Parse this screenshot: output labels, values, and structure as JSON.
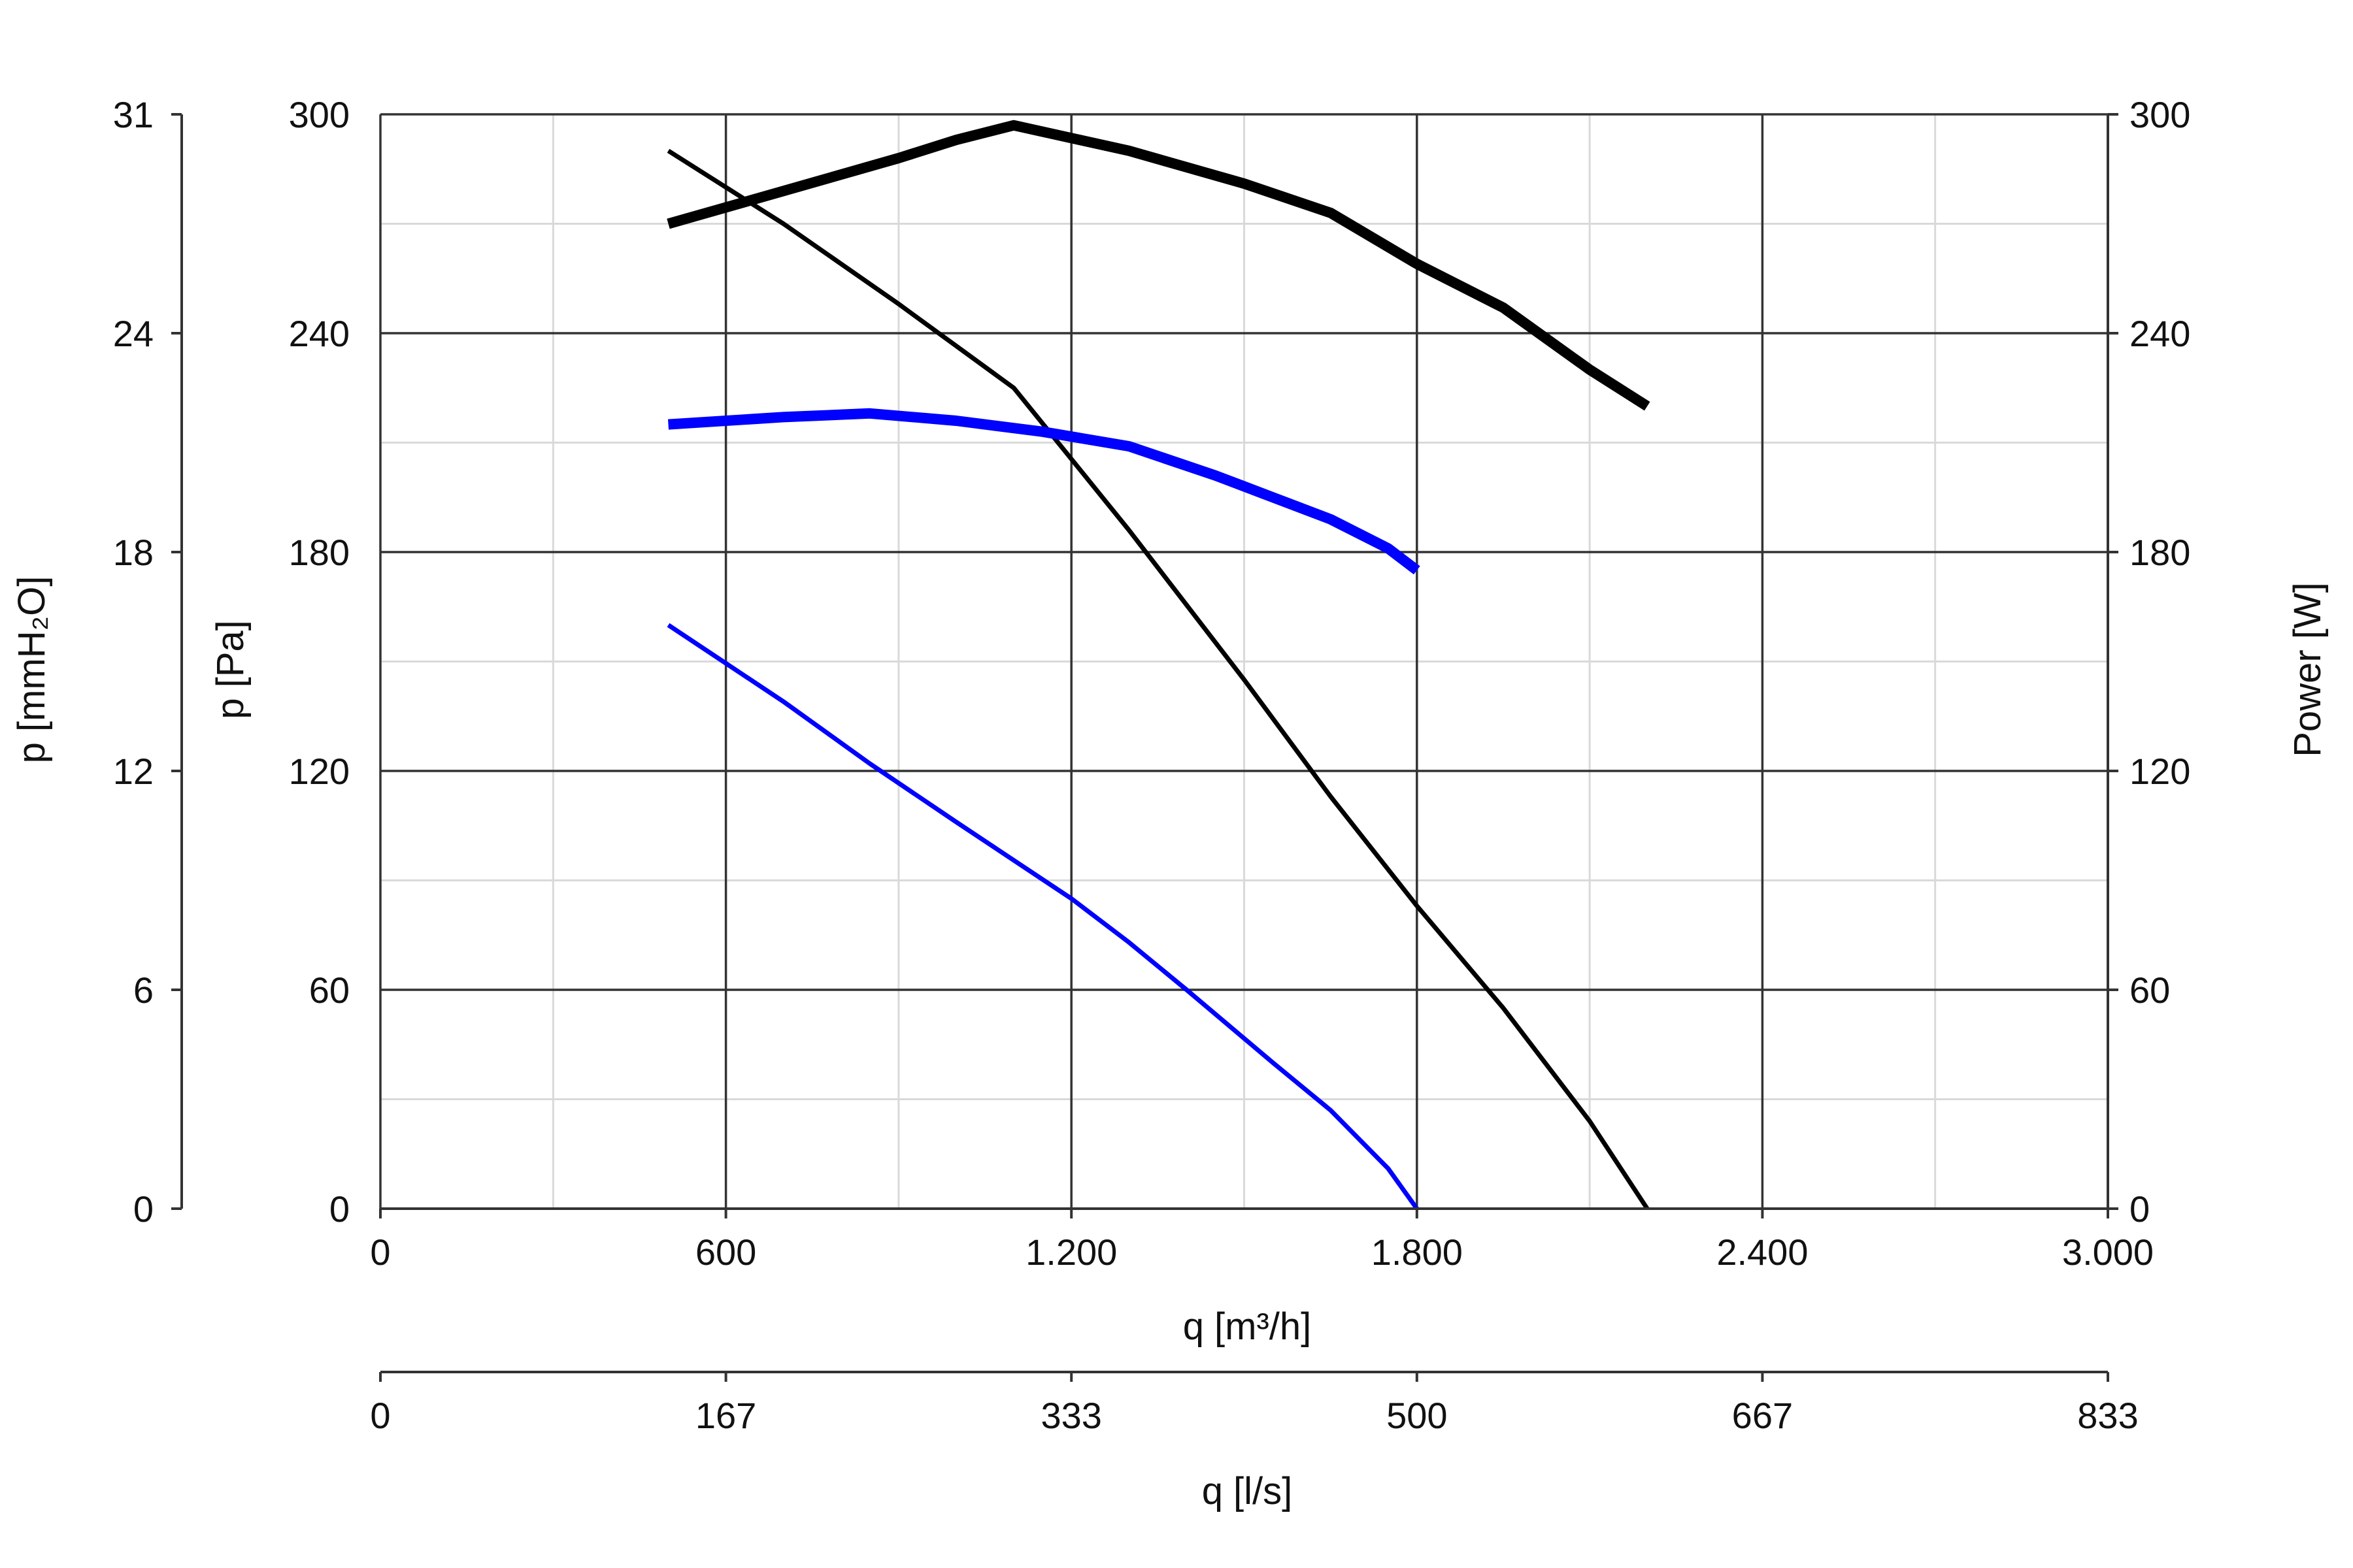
{
  "chart_data": {
    "type": "line",
    "title": "",
    "xlabel": "q [m³/h]",
    "x2label": "q [l/s]",
    "ylabel": "p [Pa]",
    "y2label": "Power [W]",
    "y3label": "p [mmH₂O]",
    "xlim": [
      0,
      3000
    ],
    "ylim": [
      0,
      300
    ],
    "y2lim": [
      0,
      300
    ],
    "grid": true,
    "legend": "none",
    "x_ticks": [
      "0",
      "600",
      "1.200",
      "1.800",
      "2.400",
      "3.000"
    ],
    "x_tick_values": [
      0,
      600,
      1200,
      1800,
      2400,
      3000
    ],
    "x2_ticks": [
      "0",
      "167",
      "333",
      "500",
      "667",
      "833"
    ],
    "y_ticks": [
      "0",
      "60",
      "120",
      "180",
      "240",
      "300"
    ],
    "y_tick_values": [
      0,
      60,
      120,
      180,
      240,
      300
    ],
    "y2_ticks": [
      "0",
      "60",
      "120",
      "180",
      "240",
      "300"
    ],
    "y3_ticks": [
      "0",
      "6",
      "12",
      "18",
      "24",
      "31"
    ],
    "series": [
      {
        "axis": "left",
        "color": "#000000",
        "style": "thin",
        "points": [
          [
            500,
            290
          ],
          [
            700,
            270
          ],
          [
            900,
            248
          ],
          [
            1100,
            225
          ],
          [
            1300,
            186
          ],
          [
            1500,
            145
          ],
          [
            1650,
            113
          ],
          [
            1800,
            83
          ],
          [
            1950,
            55
          ],
          [
            2100,
            24
          ],
          [
            2200,
            0
          ]
        ]
      },
      {
        "axis": "right",
        "color": "#000000",
        "style": "thick",
        "points": [
          [
            500,
            270
          ],
          [
            700,
            279
          ],
          [
            900,
            288
          ],
          [
            1000,
            293
          ],
          [
            1100,
            297
          ],
          [
            1300,
            290
          ],
          [
            1500,
            281
          ],
          [
            1650,
            273
          ],
          [
            1800,
            259
          ],
          [
            1950,
            247
          ],
          [
            2100,
            230
          ],
          [
            2200,
            220
          ]
        ]
      },
      {
        "axis": "left",
        "color": "#0000ff",
        "style": "thin",
        "points": [
          [
            500,
            160
          ],
          [
            700,
            139
          ],
          [
            850,
            122
          ],
          [
            1000,
            106
          ],
          [
            1200,
            85
          ],
          [
            1300,
            73
          ],
          [
            1400,
            60
          ],
          [
            1550,
            40
          ],
          [
            1650,
            27
          ],
          [
            1750,
            11
          ],
          [
            1800,
            0
          ]
        ]
      },
      {
        "axis": "right",
        "color": "#0000ff",
        "style": "thick",
        "points": [
          [
            500,
            215
          ],
          [
            700,
            217
          ],
          [
            850,
            218
          ],
          [
            1000,
            216
          ],
          [
            1150,
            213
          ],
          [
            1300,
            209
          ],
          [
            1450,
            201
          ],
          [
            1550,
            195
          ],
          [
            1650,
            189
          ],
          [
            1750,
            181
          ],
          [
            1800,
            175
          ]
        ]
      }
    ]
  }
}
